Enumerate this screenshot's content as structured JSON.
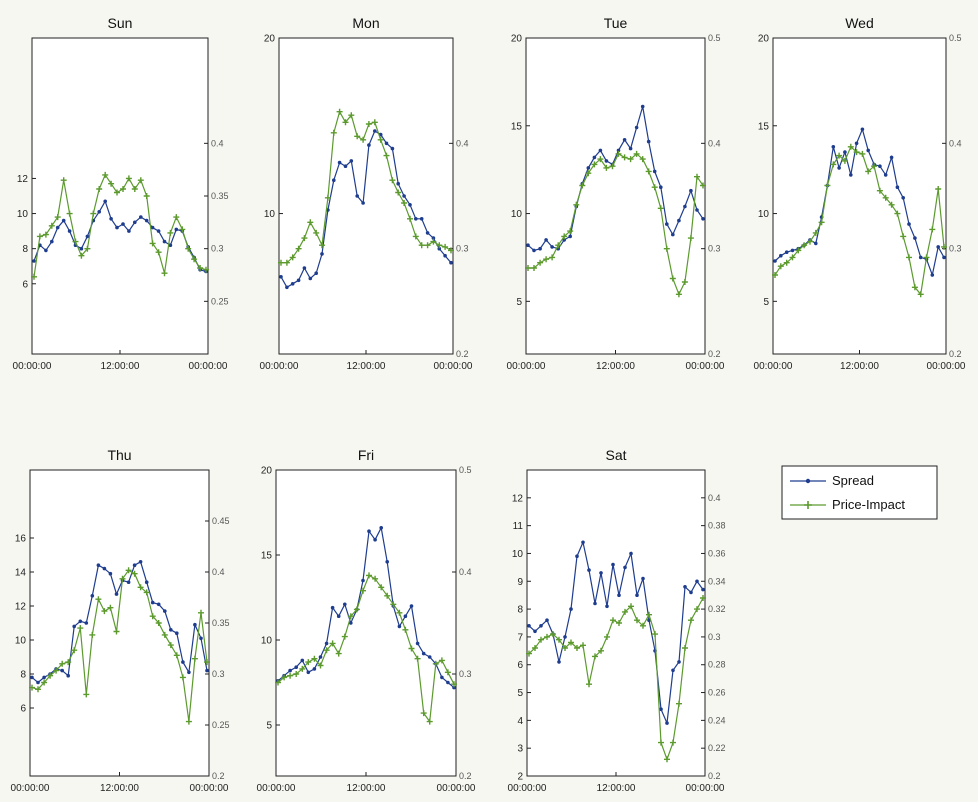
{
  "colors": {
    "spread": "#1f3d8f",
    "price_impact": "#5c9a2e",
    "axis": "#222222"
  },
  "legend": {
    "spread_label": "Spread",
    "price_impact_label": "Price-Impact"
  },
  "chart_data": [
    {
      "type": "line",
      "title": "Sun",
      "x_ticks": [
        "00:00:00",
        "12:00:00",
        "00:00:00"
      ],
      "left_ylim": [
        2,
        20
      ],
      "left_ticks": [
        6,
        8,
        10,
        12
      ],
      "right_ylim": [
        0.2,
        0.5
      ],
      "right_ticks": [
        "0.25",
        "0.3",
        "0.35",
        "0.4"
      ],
      "series": [
        {
          "name": "Spread",
          "axis": "left",
          "values": [
            7.3,
            8.2,
            7.9,
            8.4,
            9.2,
            9.6,
            9.0,
            8.2,
            8.0,
            8.7,
            9.6,
            10.1,
            10.7,
            9.7,
            9.2,
            9.4,
            9.0,
            9.5,
            9.8,
            9.6,
            9.2,
            9.0,
            8.4,
            8.2,
            9.1,
            9.0,
            8.1,
            7.5,
            6.8,
            6.7
          ]
        },
        {
          "name": "Price-Impact",
          "axis": "left",
          "values": [
            6.4,
            8.7,
            8.8,
            9.3,
            9.8,
            11.9,
            10.0,
            8.4,
            7.6,
            8.0,
            10.0,
            11.4,
            12.2,
            11.7,
            11.2,
            11.4,
            12.0,
            11.4,
            11.9,
            11.0,
            8.3,
            7.8,
            6.6,
            8.9,
            9.8,
            9.1,
            8.0,
            7.4,
            6.9,
            6.8
          ]
        }
      ]
    },
    {
      "type": "line",
      "title": "Mon",
      "x_ticks": [
        "00:00:00",
        "12:00:00",
        "00:00:00"
      ],
      "left_ylim": [
        2,
        20
      ],
      "left_ticks": [
        10,
        20
      ],
      "right_ylim": [
        0.2,
        0.5
      ],
      "right_ticks": [
        "0.2",
        "0.3",
        "0.4"
      ],
      "series": [
        {
          "name": "Spread",
          "axis": "left",
          "values": [
            6.4,
            5.8,
            6.0,
            6.2,
            6.9,
            6.3,
            6.6,
            7.7,
            10.2,
            11.9,
            12.9,
            12.7,
            13.0,
            11.0,
            10.6,
            13.9,
            14.7,
            14.5,
            14.0,
            13.7,
            11.7,
            11.0,
            10.5,
            9.7,
            9.7,
            8.9,
            8.6,
            8.0,
            7.6,
            7.2
          ]
        },
        {
          "name": "Price-Impact",
          "axis": "left",
          "values": [
            7.2,
            7.2,
            7.5,
            8.0,
            8.6,
            9.5,
            8.9,
            8.2,
            10.9,
            14.6,
            15.8,
            15.2,
            15.6,
            14.4,
            14.2,
            15.1,
            15.2,
            14.2,
            13.3,
            11.9,
            11.2,
            10.6,
            9.7,
            8.7,
            8.2,
            8.2,
            8.4,
            8.2,
            8.1,
            7.9
          ]
        }
      ]
    },
    {
      "type": "line",
      "title": "Tue",
      "x_ticks": [
        "00:00:00",
        "12:00:00",
        "00:00:00"
      ],
      "left_ylim": [
        2,
        20
      ],
      "left_ticks": [
        5,
        10,
        15,
        20
      ],
      "right_ylim": [
        0.2,
        0.5
      ],
      "right_ticks": [
        "0.2",
        "0.3",
        "0.4",
        "0.5"
      ],
      "series": [
        {
          "name": "Spread",
          "axis": "left",
          "values": [
            8.2,
            7.9,
            8.0,
            8.5,
            8.1,
            8.0,
            8.5,
            8.7,
            10.4,
            11.7,
            12.6,
            13.2,
            13.6,
            13.0,
            12.8,
            13.6,
            14.2,
            13.7,
            14.9,
            16.1,
            14.1,
            12.4,
            11.5,
            9.4,
            8.8,
            9.6,
            10.4,
            11.3,
            10.2,
            9.7
          ]
        },
        {
          "name": "Price-Impact",
          "axis": "left",
          "values": [
            6.9,
            6.9,
            7.2,
            7.4,
            7.5,
            8.2,
            8.7,
            9.0,
            10.5,
            11.6,
            12.3,
            12.8,
            13.1,
            12.6,
            12.7,
            13.4,
            13.2,
            13.1,
            13.4,
            13.1,
            12.4,
            11.5,
            10.3,
            8.0,
            6.3,
            5.4,
            6.1,
            8.6,
            12.1,
            11.6
          ]
        }
      ]
    },
    {
      "type": "line",
      "title": "Wed",
      "x_ticks": [
        "00:00:00",
        "12:00:00",
        "00:00:00"
      ],
      "left_ylim": [
        2,
        20
      ],
      "left_ticks": [
        5,
        10,
        15,
        20
      ],
      "right_ylim": [
        0.2,
        0.5
      ],
      "right_ticks": [
        "0.2",
        "0.3",
        "0.4",
        "0.5"
      ],
      "series": [
        {
          "name": "Spread",
          "axis": "left",
          "values": [
            7.3,
            7.6,
            7.8,
            7.9,
            8.0,
            8.2,
            8.5,
            8.3,
            9.8,
            11.6,
            13.8,
            12.6,
            13.5,
            12.2,
            14.0,
            14.8,
            13.6,
            12.8,
            12.7,
            12.2,
            13.2,
            11.5,
            10.9,
            9.4,
            8.6,
            7.5,
            7.4,
            6.5,
            8.1,
            7.5
          ]
        },
        {
          "name": "Price-Impact",
          "axis": "left",
          "values": [
            6.5,
            7.0,
            7.2,
            7.5,
            7.9,
            8.2,
            8.4,
            8.9,
            9.5,
            11.6,
            12.8,
            13.3,
            13.0,
            13.8,
            13.5,
            13.4,
            12.4,
            12.7,
            11.3,
            10.9,
            10.5,
            10.0,
            8.7,
            7.5,
            5.8,
            5.4,
            7.5,
            9.1,
            11.4,
            8.1
          ]
        }
      ]
    },
    {
      "type": "line",
      "title": "Thu",
      "x_ticks": [
        "00:00:00",
        "12:00:00",
        "00:00:00"
      ],
      "left_ylim": [
        2,
        20
      ],
      "left_ticks": [
        6,
        8,
        10,
        12,
        14,
        16
      ],
      "right_ylim": [
        0.2,
        0.5
      ],
      "right_ticks": [
        "0.2",
        "0.25",
        "0.3",
        "0.35",
        "0.4",
        "0.45"
      ],
      "series": [
        {
          "name": "Spread",
          "axis": "left",
          "values": [
            7.8,
            7.5,
            7.8,
            8.0,
            8.3,
            8.2,
            7.9,
            10.8,
            11.1,
            11.0,
            12.6,
            14.4,
            14.2,
            13.9,
            12.7,
            13.5,
            13.4,
            14.4,
            14.6,
            13.4,
            12.2,
            12.1,
            11.7,
            10.6,
            10.4,
            8.7,
            8.1,
            10.9,
            10.1,
            8.2
          ]
        },
        {
          "name": "Price-Impact",
          "axis": "left",
          "values": [
            7.2,
            7.1,
            7.5,
            7.9,
            8.2,
            8.6,
            8.7,
            9.4,
            10.7,
            6.8,
            10.3,
            12.4,
            11.7,
            11.9,
            10.5,
            13.6,
            14.1,
            13.9,
            13.1,
            12.8,
            11.4,
            11.0,
            10.3,
            9.7,
            9.1,
            7.8,
            5.2,
            8.9,
            11.6,
            8.7
          ]
        }
      ]
    },
    {
      "type": "line",
      "title": "Fri",
      "x_ticks": [
        "00:00:00",
        "12:00:00",
        "00:00:00"
      ],
      "left_ylim": [
        2,
        20
      ],
      "left_ticks": [
        5,
        10,
        15,
        20
      ],
      "right_ylim": [
        0.2,
        0.5
      ],
      "right_ticks": [
        "0.2",
        "0.3",
        "0.4",
        "0.5"
      ],
      "series": [
        {
          "name": "Spread",
          "axis": "left",
          "values": [
            7.6,
            7.9,
            8.2,
            8.4,
            8.8,
            8.1,
            8.3,
            9.0,
            9.8,
            11.9,
            11.4,
            12.1,
            11.0,
            11.8,
            13.5,
            16.4,
            15.9,
            16.6,
            14.6,
            12.0,
            10.8,
            11.4,
            12.0,
            9.8,
            9.2,
            9.0,
            8.6,
            7.8,
            7.5,
            7.2
          ]
        },
        {
          "name": "Price-Impact",
          "axis": "left",
          "values": [
            7.5,
            7.8,
            7.9,
            8.0,
            8.3,
            8.7,
            8.9,
            8.5,
            9.4,
            9.8,
            9.2,
            10.2,
            11.4,
            11.8,
            12.9,
            13.8,
            13.6,
            13.1,
            12.6,
            12.1,
            11.6,
            10.6,
            9.5,
            8.9,
            5.7,
            5.2,
            8.6,
            8.8,
            8.1,
            7.4
          ]
        }
      ]
    },
    {
      "type": "line",
      "title": "Sat",
      "x_ticks": [
        "00:00:00",
        "12:00:00",
        "00:00:00"
      ],
      "left_ylim": [
        2,
        13
      ],
      "left_ticks": [
        2,
        3,
        4,
        5,
        6,
        7,
        8,
        9,
        10,
        11,
        12
      ],
      "right_ylim": [
        0.2,
        0.42
      ],
      "right_ticks": [
        "0.2",
        "0.22",
        "0.24",
        "0.26",
        "0.28",
        "0.3",
        "0.32",
        "0.34",
        "0.36",
        "0.38",
        "0.4"
      ],
      "series": [
        {
          "name": "Spread",
          "axis": "left",
          "values": [
            7.4,
            7.2,
            7.4,
            7.6,
            7.1,
            6.1,
            7.0,
            8.0,
            9.9,
            10.4,
            9.4,
            8.2,
            9.3,
            8.1,
            9.6,
            8.5,
            9.5,
            10.0,
            8.5,
            9.1,
            7.6,
            6.5,
            4.4,
            3.9,
            5.8,
            6.1,
            8.8,
            8.6,
            9.0,
            8.7
          ]
        },
        {
          "name": "Price-Impact",
          "axis": "left",
          "values": [
            6.4,
            6.6,
            6.9,
            7.0,
            7.1,
            6.9,
            6.6,
            6.8,
            6.6,
            6.7,
            5.3,
            6.3,
            6.5,
            7.0,
            7.6,
            7.5,
            7.9,
            8.1,
            7.6,
            7.4,
            7.8,
            7.1,
            3.2,
            2.6,
            3.2,
            4.6,
            6.6,
            7.6,
            8.0,
            8.4
          ]
        }
      ]
    }
  ]
}
